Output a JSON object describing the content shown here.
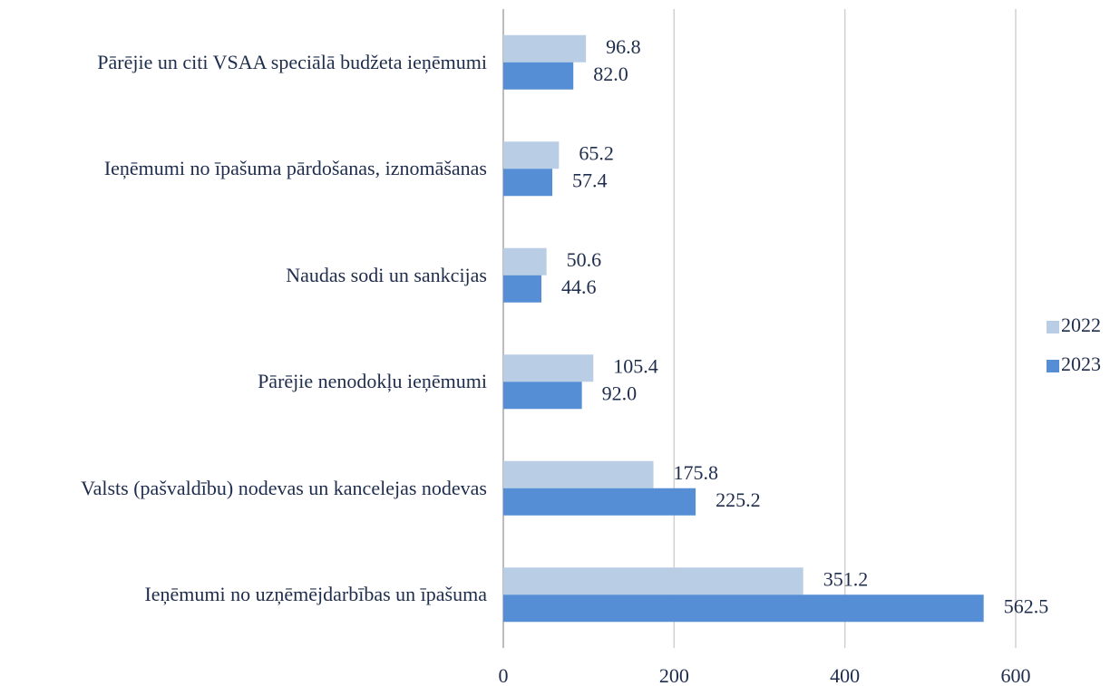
{
  "chart_data": {
    "type": "bar",
    "orientation": "horizontal",
    "categories": [
      "Pārējie un citi VSAA speciālā budžeta ieņēmumi",
      "Ieņēmumi no īpašuma pārdošanas, iznomāšanas",
      "Naudas sodi un sankcijas",
      "Pārējie nenodokļu ieņēmumi",
      "Valsts (pašvaldību) nodevas un kancelejas nodevas",
      "Ieņēmumi no uzņēmējdarbības un īpašuma"
    ],
    "series": [
      {
        "name": "2022",
        "color": "#b9cde5",
        "values": [
          96.8,
          65.2,
          50.6,
          105.4,
          175.8,
          351.2
        ],
        "value_labels": [
          "96.8",
          "65.2",
          "50.6",
          "105.4",
          "175.8",
          "351.2"
        ]
      },
      {
        "name": "2023",
        "color": "#558ed5",
        "values": [
          82.0,
          57.4,
          44.6,
          92.0,
          225.2,
          562.5
        ],
        "value_labels": [
          "82.0",
          "57.4",
          "44.6",
          "92.0",
          "225.2",
          "562.5"
        ]
      }
    ],
    "xlim": [
      0,
      600
    ],
    "xticks": [
      0,
      200,
      400,
      600
    ],
    "grid": true,
    "legend": "right"
  }
}
